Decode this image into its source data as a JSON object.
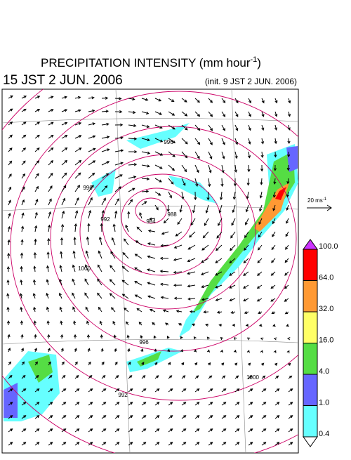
{
  "header": {
    "title_main": "PRECIPITATION INTENSITY (mm hour",
    "title_sup": "-1",
    "title_end": ")",
    "valid_time": "15 JST 2 JUN. 2006",
    "init_time": "(init. 9 JST 2 JUN. 2006)"
  },
  "wind_scale": {
    "label": "20 ms",
    "sup": "-1"
  },
  "colorbar": {
    "levels": [
      {
        "value": 100,
        "label": "100.0"
      },
      {
        "value": 64,
        "label": "64.0"
      },
      {
        "value": 32,
        "label": "32.0"
      },
      {
        "value": 16,
        "label": "16.0"
      },
      {
        "value": 4,
        "label": "4.0"
      },
      {
        "value": 1,
        "label": "1.0"
      },
      {
        "value": 0.4,
        "label": "0.4"
      }
    ],
    "colors": [
      "#cc33ff",
      "#ff0000",
      "#ff9933",
      "#ffff66",
      "#55dd44",
      "#6666ff",
      "#66ffff",
      "#ffffff"
    ]
  },
  "isobars": {
    "labels": [
      984,
      988,
      992,
      996,
      996,
      1000,
      1000,
      996,
      992
    ]
  }
}
